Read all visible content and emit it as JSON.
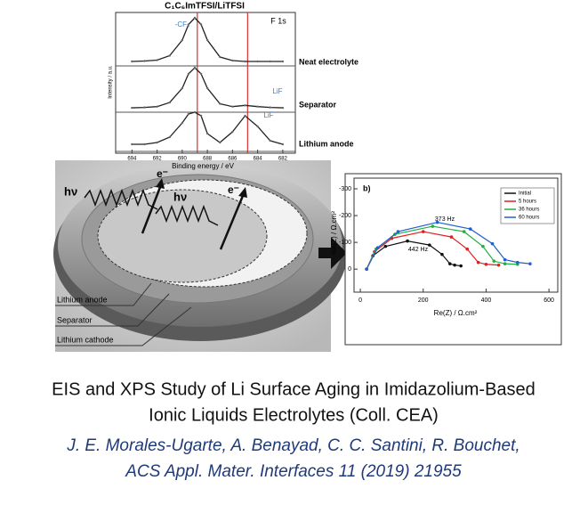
{
  "chart_data": [
    {
      "type": "line",
      "title": "C₁C₆ImTFSI/LiTFSI",
      "subtitle": "F 1s",
      "x_label": "Binding energy / eV",
      "y_label": "Intensity / a.u.",
      "x": [
        694,
        693,
        692,
        691,
        690,
        689.5,
        689,
        688.5,
        688,
        687,
        686,
        685,
        684,
        683,
        682
      ],
      "series": [
        {
          "name": "Neat electrolyte",
          "color": "#222222",
          "values": [
            0.02,
            0.03,
            0.05,
            0.15,
            0.5,
            0.85,
            1,
            0.85,
            0.5,
            0.12,
            0.04,
            0.02,
            0.02,
            0.02,
            0.02
          ]
        },
        {
          "name": "Separator",
          "color": "#222222",
          "values": [
            0.02,
            0.03,
            0.05,
            0.15,
            0.5,
            0.85,
            1,
            0.85,
            0.5,
            0.12,
            0.05,
            0.08,
            0.05,
            0.03,
            0.02
          ]
        },
        {
          "name": "Lithium anode",
          "color": "#222222",
          "values": [
            0.1,
            0.1,
            0.15,
            0.3,
            0.7,
            0.95,
            1,
            0.9,
            0.4,
            0.15,
            0.45,
            0.9,
            0.6,
            0.2,
            0.1
          ]
        }
      ],
      "annotations": [
        "-CF₃",
        "LiF",
        "LiF"
      ],
      "reference_lines": [
        688.8,
        684.8
      ],
      "reference_color": "#e03030",
      "xlim": [
        695.3,
        681
      ],
      "xticks": [
        694,
        692,
        690,
        688,
        686,
        684,
        682
      ]
    },
    {
      "type": "line",
      "title": "b)",
      "x_label": "Re(Z) / Ω.cm²",
      "y_label": "-Im(Z) / Ω.cm²",
      "series": [
        {
          "name": "Initial",
          "color": "#111111",
          "x": [
            20,
            40,
            80,
            150,
            220,
            260,
            285,
            300,
            320
          ],
          "values": [
            0,
            -50,
            -85,
            -105,
            -90,
            -55,
            -20,
            -15,
            -12
          ]
        },
        {
          "name": "5 hours",
          "color": "#e02020",
          "x": [
            20,
            45,
            100,
            200,
            290,
            340,
            375,
            400,
            440
          ],
          "values": [
            0,
            -65,
            -115,
            -140,
            -120,
            -75,
            -25,
            -18,
            -15
          ]
        },
        {
          "name": "36 hours",
          "color": "#20b040",
          "x": [
            20,
            50,
            110,
            230,
            330,
            390,
            425,
            460,
            500
          ],
          "values": [
            0,
            -75,
            -130,
            -160,
            -140,
            -85,
            -30,
            -20,
            -18
          ]
        },
        {
          "name": "60 hours",
          "color": "#2060d0",
          "x": [
            20,
            55,
            120,
            245,
            350,
            420,
            460,
            500,
            540
          ],
          "values": [
            0,
            -80,
            -140,
            -175,
            -150,
            -95,
            -35,
            -25,
            -20
          ]
        }
      ],
      "annotations": [
        "373 Hz",
        "442 Hz"
      ],
      "legend": "upper right",
      "xlim": [
        -20,
        628
      ],
      "xticks": [
        0,
        200,
        400,
        600
      ],
      "ylim": [
        86,
        -340
      ],
      "yticks": [
        -300,
        -200,
        -100,
        0
      ]
    }
  ],
  "photo": {
    "labels": [
      "hν",
      "hν",
      "e⁻",
      "e⁻"
    ],
    "layers": [
      "Lithium anode",
      "Separator",
      "Lithium cathode"
    ]
  },
  "caption": {
    "title": [
      "EIS and XPS Study of Li Surface Aging in Imidazolium-Based",
      "Ionic Liquids Electrolytes (Coll. CEA)"
    ],
    "authors": [
      "J. E. Morales-Ugarte, A. Benayad, C. C. Santini, R. Bouchet,",
      "ACS Appl. Mater. Interfaces 11 (2019) 21955"
    ]
  }
}
